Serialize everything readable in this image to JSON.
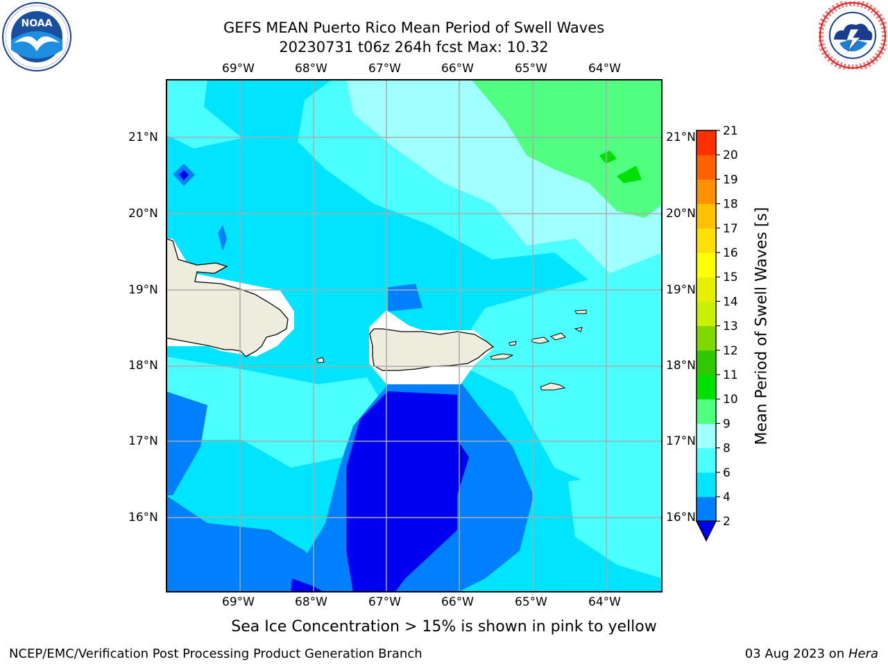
{
  "header": {
    "title_line1": "GEFS MEAN Puerto Rico Mean Period of Swell Waves",
    "title_line2": "20230731 t06z 264h fcst   Max: 10.32"
  },
  "logos": {
    "left": {
      "name": "NOAA",
      "ring_text": "NATIONAL OCEANIC AND ATMOSPHERIC ADMINISTRATION · U.S. DEPARTMENT OF COMMERCE",
      "center_text": "NOAA"
    },
    "right": {
      "name": "National Weather Service",
      "ring_text": "NATIONAL WEATHER SERVICE"
    }
  },
  "map": {
    "lon_labels": [
      "69°W",
      "68°W",
      "67°W",
      "66°W",
      "65°W",
      "64°W"
    ],
    "lat_labels": [
      "21°N",
      "20°N",
      "19°N",
      "18°N",
      "17°N",
      "16°N"
    ],
    "land_color": "#eeecdc",
    "grid_color": "#aaaaaa"
  },
  "colorbar": {
    "label": "Mean Period of Swell Waves [s]",
    "ticks": [
      "2",
      "4",
      "6",
      "8",
      "9",
      "10",
      "11",
      "12",
      "13",
      "14",
      "15",
      "16",
      "17",
      "18",
      "19",
      "20",
      "21"
    ],
    "colors": [
      "#0080ff",
      "#00e4ff",
      "#4cffff",
      "#a0ffff",
      "#50ff80",
      "#00e000",
      "#30c800",
      "#80d800",
      "#c8f000",
      "#e8f000",
      "#ffff00",
      "#ffe000",
      "#ffc000",
      "#ff9000",
      "#ff6000",
      "#ff3000"
    ],
    "under_color": "#0000f0",
    "range_min": 2,
    "range_max": 21,
    "extend": "min"
  },
  "note": "Sea Ice Concentration > 15% is shown in pink to yellow",
  "footer": {
    "left": "NCEP/EMC/Verification Post Processing Product Generation Branch",
    "date": "03 Aug 2023 on ",
    "machine": "Hera"
  }
}
